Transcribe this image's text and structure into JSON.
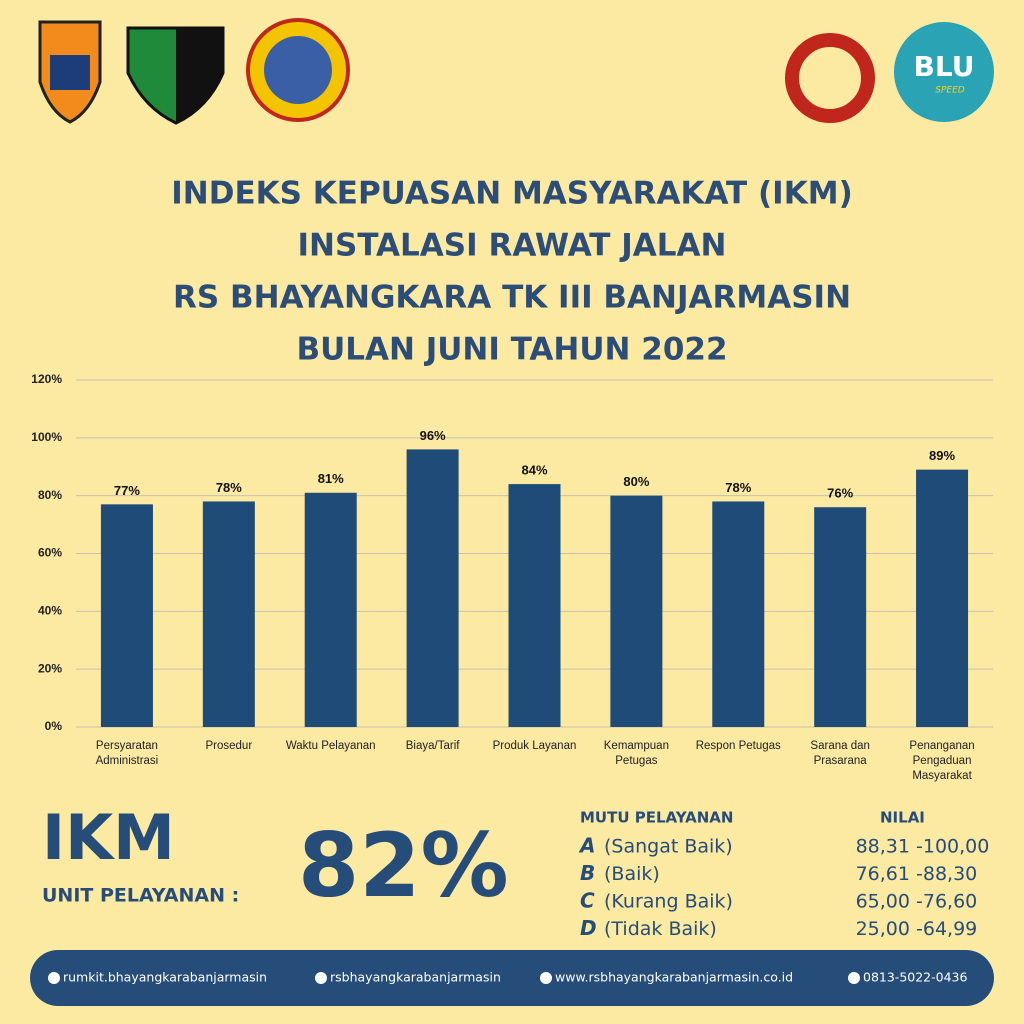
{
  "chart_data": {
    "type": "bar",
    "title": [
      "INDEKS KEPUASAN MASYARAKAT (IKM)",
      "INSTALASI RAWAT JALAN",
      "RS BHAYANGKARA TK III BANJARMASIN",
      "BULAN JUNI TAHUN 2022"
    ],
    "categories": [
      "Persyaratan Administrasi",
      "Prosedur",
      "Waktu Pelayanan",
      "Biaya/Tarif",
      "Produk Layanan",
      "Kemampuan Petugas",
      "Respon Petugas",
      "Sarana dan Prasarana",
      "Penanganan Pengaduan Masyarakat"
    ],
    "values": [
      77,
      78,
      81,
      96,
      84,
      80,
      78,
      76,
      89
    ],
    "value_labels": [
      "77%",
      "78%",
      "81%",
      "96%",
      "84%",
      "80%",
      "78%",
      "76%",
      "89%"
    ],
    "color": "#1f4b78",
    "ylim": [
      0,
      120
    ],
    "yticks": [
      {
        "value": 0,
        "label": "0%"
      },
      {
        "value": 20,
        "label": "20%"
      },
      {
        "value": 40,
        "label": "40%"
      },
      {
        "value": 60,
        "label": "60%"
      },
      {
        "value": 80,
        "label": "80%"
      },
      {
        "value": 100,
        "label": "100%"
      },
      {
        "value": 120,
        "label": "120%"
      }
    ],
    "grid": true
  },
  "logos": {
    "blu": "BLU",
    "speed": "SPEED"
  },
  "summary": {
    "label": "IKM",
    "sublabel": "UNIT PELAYANAN :",
    "value": "82%"
  },
  "table": {
    "headers": [
      "MUTU PELAYANAN",
      "NILAI"
    ],
    "rows": [
      [
        "A",
        "(Sangat Baik)",
        "88,31",
        "-100,00"
      ],
      [
        "B",
        "(Baik)",
        "76,61",
        "-88,30"
      ],
      [
        "C",
        "(Kurang Baik)",
        "65,00",
        "-76,60"
      ],
      [
        "D",
        "(Tidak Baik)",
        "25,00",
        "-64,99"
      ]
    ]
  },
  "footer": [
    "rumkit.bhayangkarabanjarmasin",
    "rsbhayangkarabanjarmasin",
    "www.rsbhayangkarabanjarmasin.co.id",
    "0813-5022-0436"
  ]
}
